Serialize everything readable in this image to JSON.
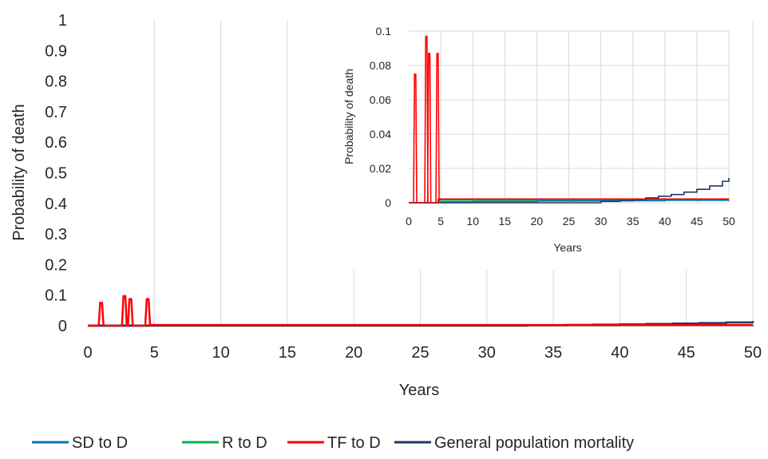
{
  "chart_data": [
    {
      "type": "line",
      "role": "main",
      "ylabel": "Probability of death",
      "xlabel": "Years",
      "xlim": [
        0,
        50
      ],
      "ylim": [
        0,
        1
      ],
      "x_ticks": [
        "0",
        "5",
        "10",
        "15",
        "20",
        "25",
        "30",
        "35",
        "40",
        "45",
        "50"
      ],
      "y_ticks": [
        "0",
        "0.1",
        "0.2",
        "0.3",
        "0.4",
        "0.5",
        "0.6",
        "0.7",
        "0.8",
        "0.9",
        "1"
      ],
      "grid": "vertical",
      "legend_position": "bottom",
      "series": [
        {
          "name": "SD to D",
          "color": "#0070c0",
          "points": [
            [
              0,
              0.0005
            ],
            [
              5,
              0.0005
            ],
            [
              10,
              0.0007
            ],
            [
              20,
              0.001
            ],
            [
              30,
              0.0012
            ],
            [
              40,
              0.0015
            ],
            [
              50,
              0.0016
            ]
          ]
        },
        {
          "name": "R to D",
          "color": "#00b050",
          "points": [
            [
              0,
              0.0
            ],
            [
              4.6,
              0.0
            ],
            [
              4.6,
              0.0015
            ],
            [
              30,
              0.0015
            ],
            [
              50,
              0.0015
            ]
          ]
        },
        {
          "name": "TF to D",
          "color": "#ff0000",
          "spikes": [
            [
              1.0,
              0.075
            ],
            [
              2.75,
              0.097
            ],
            [
              3.2,
              0.087
            ],
            [
              4.5,
              0.087
            ]
          ],
          "baseline_after": 0.0022,
          "baseline_start": 4.6
        },
        {
          "name": "General population mortality",
          "color": "#203864",
          "points": [
            [
              0,
              0.0
            ],
            [
              33,
              0.0012
            ],
            [
              36,
              0.0025
            ],
            [
              38,
              0.0035
            ],
            [
              40,
              0.0045
            ],
            [
              42,
              0.0058
            ],
            [
              44,
              0.0072
            ],
            [
              46,
              0.0088
            ],
            [
              48,
              0.0108
            ],
            [
              50,
              0.015
            ]
          ]
        }
      ]
    },
    {
      "type": "line",
      "role": "inset",
      "ylabel": "Probability of death",
      "xlabel": "Years",
      "xlim": [
        0,
        50
      ],
      "ylim": [
        0,
        0.1
      ],
      "x_ticks": [
        "0",
        "5",
        "10",
        "15",
        "20",
        "25",
        "30",
        "35",
        "40",
        "45",
        "50"
      ],
      "y_ticks": [
        "0",
        "0.02",
        "0.04",
        "0.06",
        "0.08",
        "0.1"
      ],
      "grid": "both",
      "series": [
        {
          "name": "SD to D",
          "color": "#0070c0",
          "points": [
            [
              0,
              0.0
            ],
            [
              5,
              0.0005
            ],
            [
              10,
              0.0007
            ],
            [
              20,
              0.001
            ],
            [
              30,
              0.0012
            ],
            [
              40,
              0.0015
            ],
            [
              50,
              0.0016
            ]
          ]
        },
        {
          "name": "R to D",
          "color": "#00b050",
          "points": [
            [
              0,
              0.0
            ],
            [
              4.6,
              0.0
            ],
            [
              4.6,
              0.0015
            ],
            [
              30,
              0.0015
            ],
            [
              50,
              0.0015
            ]
          ]
        },
        {
          "name": "TF to D",
          "color": "#ff0000",
          "spikes": [
            [
              1.0,
              0.075
            ],
            [
              2.75,
              0.097
            ],
            [
              3.2,
              0.087
            ],
            [
              4.5,
              0.087
            ]
          ],
          "baseline_after": 0.0022,
          "baseline_start": 4.6
        },
        {
          "name": "General population mortality",
          "color": "#203864",
          "points": [
            [
              0,
              0.0
            ],
            [
              30,
              0.0008
            ],
            [
              33,
              0.0012
            ],
            [
              35,
              0.0018
            ],
            [
              37,
              0.0028
            ],
            [
              39,
              0.0038
            ],
            [
              41,
              0.0048
            ],
            [
              43,
              0.0062
            ],
            [
              45,
              0.0078
            ],
            [
              47,
              0.0098
            ],
            [
              49,
              0.0125
            ],
            [
              50,
              0.0145
            ]
          ]
        }
      ]
    }
  ],
  "legend": [
    {
      "label": "SD to D",
      "color": "#0070c0"
    },
    {
      "label": "R to D",
      "color": "#00b050"
    },
    {
      "label": "TF to D",
      "color": "#ff0000"
    },
    {
      "label": "General population mortality",
      "color": "#203864"
    }
  ]
}
